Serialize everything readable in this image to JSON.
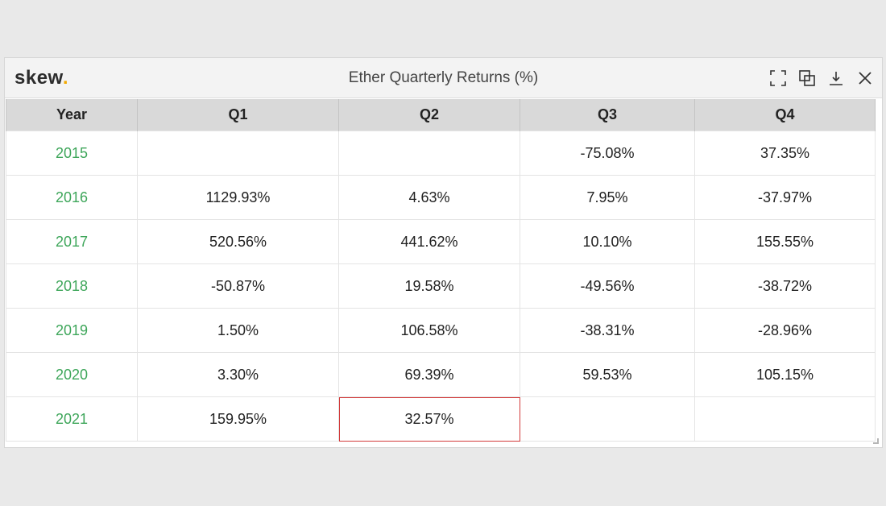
{
  "window": {
    "logo": "skew",
    "logo_dot": ".",
    "title": "Ether Quarterly Returns (%)",
    "toolbar": [
      {
        "name": "fullscreen-icon"
      },
      {
        "name": "duplicate-icon"
      },
      {
        "name": "download-icon"
      },
      {
        "name": "close-icon"
      }
    ]
  },
  "table": {
    "headers": [
      "Year",
      "Q1",
      "Q2",
      "Q3",
      "Q4"
    ],
    "rows": [
      [
        "2015",
        "",
        "",
        "-75.08%",
        "37.35%"
      ],
      [
        "2016",
        "1129.93%",
        "4.63%",
        "7.95%",
        "-37.97%"
      ],
      [
        "2017",
        "520.56%",
        "441.62%",
        "10.10%",
        "155.55%"
      ],
      [
        "2018",
        "-50.87%",
        "19.58%",
        "-49.56%",
        "-38.72%"
      ],
      [
        "2019",
        "1.50%",
        "106.58%",
        "-38.31%",
        "-28.96%"
      ],
      [
        "2020",
        "3.30%",
        "69.39%",
        "59.53%",
        "105.15%"
      ],
      [
        "2021",
        "159.95%",
        "32.57%",
        "",
        ""
      ]
    ]
  },
  "colors": {
    "year_text": "#3ea65a",
    "logo_dot": "#f2a900",
    "selected_cell_border": "#d23b3b"
  }
}
